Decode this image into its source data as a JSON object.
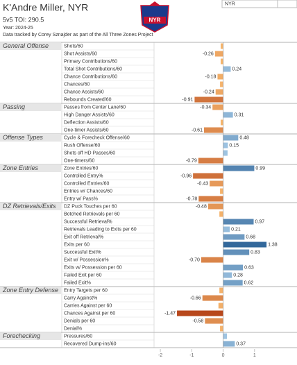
{
  "chart_data": {
    "type": "bar",
    "title": "K'Andre Miller, NYR",
    "toi": "5v5 TOI: 290.5",
    "year": "Year: 2024-25",
    "source": "Data tracked by Corey Sznajder as part of the All Three Zones Project",
    "logo_text": "NYR",
    "team_filter": "NYR",
    "xlim": [
      -2.2,
      2.35
    ],
    "xticks": [
      -2,
      -1,
      0,
      1
    ],
    "colors": {
      "negative": [
        "#f9bb72",
        "#b7461a"
      ],
      "positive": [
        "#a9cde9",
        "#285f94"
      ]
    },
    "sections": [
      {
        "name": "General Offense",
        "metrics": [
          {
            "name": "Shots/60",
            "value": -0.08
          },
          {
            "name": "Shot Assists/60",
            "value": -0.26,
            "value_label": "-0.26"
          },
          {
            "name": "Primary Contributions/60",
            "value": -0.08
          },
          {
            "name": "Total Shot Contributions/60",
            "value": 0.24,
            "value_label": "0.24"
          },
          {
            "name": "Chance Contributions/60",
            "value": -0.18,
            "value_label": "-0.18"
          },
          {
            "name": "Chances/60",
            "value": -0.1
          },
          {
            "name": "Chance Assists/60",
            "value": -0.24,
            "value_label": "-0.24"
          },
          {
            "name": "Rebounds Created/60",
            "value": -0.91,
            "value_label": "-0.91"
          }
        ]
      },
      {
        "name": "Passing",
        "metrics": [
          {
            "name": "Passes from Center Lane/60",
            "value": -0.34,
            "value_label": "-0.34"
          },
          {
            "name": "High Danger Assists/60",
            "value": 0.31,
            "value_label": "0.31"
          },
          {
            "name": "Deflection Assists/60",
            "value": -0.08
          },
          {
            "name": "One-timer Assists/60",
            "value": -0.61,
            "value_label": "-0.61"
          }
        ]
      },
      {
        "name": "Offense Types",
        "metrics": [
          {
            "name": "Cycle & Forecheck Offense/60",
            "value": 0.48,
            "value_label": "0.48"
          },
          {
            "name": "Rush Offense/60",
            "value": 0.15,
            "value_label": "0.15"
          },
          {
            "name": "Shots off HD Passes/60",
            "value": 0.14
          },
          {
            "name": "One-timers/60",
            "value": -0.79,
            "value_label": "-0.79"
          }
        ]
      },
      {
        "name": "Zone Entries",
        "metrics": [
          {
            "name": "Zone Entries/60",
            "value": 0.99,
            "value_label": "0.99"
          },
          {
            "name": "Controlled Entry%",
            "value": -0.96,
            "value_label": "-0.96"
          },
          {
            "name": "Controlled Entries/60",
            "value": -0.43,
            "value_label": "-0.43"
          },
          {
            "name": "Entries w/ Chances/60",
            "value": -0.1
          },
          {
            "name": "Entry w/ Pass%",
            "value": -0.78,
            "value_label": "-0.78"
          }
        ]
      },
      {
        "name": "DZ Retrievals/Exits",
        "metrics": [
          {
            "name": "DZ Puck Touches per 60",
            "value": -0.48,
            "value_label": "-0.48"
          },
          {
            "name": "Botched Retrievals per 60",
            "value": -0.12
          },
          {
            "name": "Successful Retrieval%",
            "value": 0.97,
            "value_label": "0.97"
          },
          {
            "name": "Retrievals Leading to Exits per 60",
            "value": 0.21,
            "value_label": "0.21"
          },
          {
            "name": "Exit off Retrieval%",
            "value": 0.68,
            "value_label": "0.68"
          },
          {
            "name": "Exits per 60",
            "value": 1.38,
            "value_label": "1.38"
          },
          {
            "name": "Successful Exit%",
            "value": 0.83,
            "value_label": "0.83"
          },
          {
            "name": "Exit w/ Possession%",
            "value": -0.7,
            "value_label": "-0.70"
          },
          {
            "name": "Exits w/ Possession per 60",
            "value": 0.63,
            "value_label": "0.63"
          },
          {
            "name": "Failed Exit per 60",
            "value": 0.28,
            "value_label": "0.28"
          },
          {
            "name": "Failed Exit%",
            "value": 0.62,
            "value_label": "0.62"
          }
        ]
      },
      {
        "name": "Zone Entry Defense",
        "metrics": [
          {
            "name": "Entry Targets per 60",
            "value": -0.12
          },
          {
            "name": "Carry Against%",
            "value": -0.66,
            "value_label": "-0.66"
          },
          {
            "name": "Carries Against per 60",
            "value": -0.15
          },
          {
            "name": "Chances Against per 60",
            "value": -1.47,
            "value_label": "-1.47"
          },
          {
            "name": "Denials per 60",
            "value": -0.58,
            "value_label": "-0.58"
          },
          {
            "name": "Denial%",
            "value": -0.1
          }
        ]
      },
      {
        "name": "Forechecking",
        "metrics": [
          {
            "name": "Pressures/60",
            "value": 0.12
          },
          {
            "name": "Recovered Dump-ins/60",
            "value": 0.37,
            "value_label": "0.37"
          }
        ]
      }
    ]
  }
}
